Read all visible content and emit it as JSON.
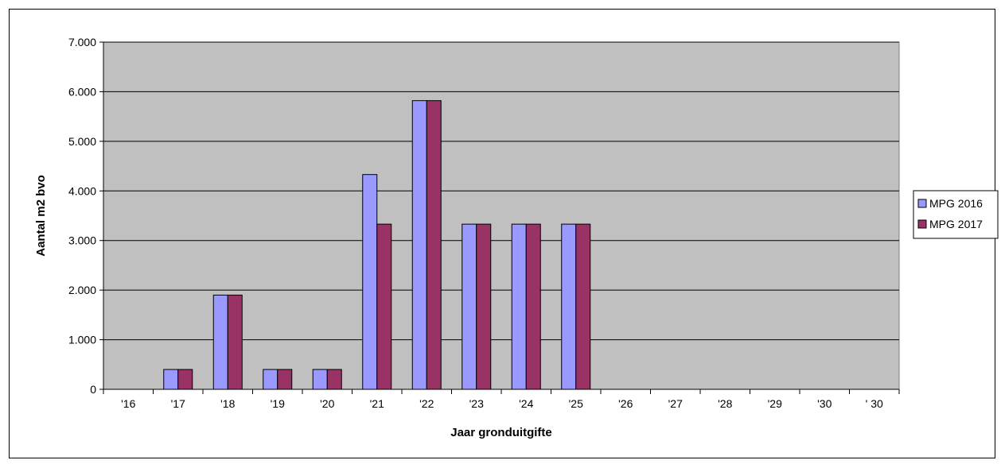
{
  "chart_data": {
    "type": "bar",
    "title": "",
    "xlabel": "Jaar gronduitgifte",
    "ylabel": "Aantal m2 bvo",
    "categories": [
      "'16",
      "'17",
      "'18",
      "'19",
      "'20",
      "'21",
      "'22",
      "'23",
      "'24",
      "'25",
      "'26",
      "'27",
      "'28",
      "'29",
      "'30",
      "' 30"
    ],
    "series": [
      {
        "name": "MPG 2016",
        "color": "#9999ff",
        "values": [
          0,
          400,
          1900,
          400,
          400,
          4330,
          5820,
          3330,
          3330,
          3330,
          0,
          0,
          0,
          0,
          0,
          0
        ]
      },
      {
        "name": "MPG 2017",
        "color": "#993366",
        "values": [
          0,
          400,
          1900,
          400,
          400,
          3330,
          5820,
          3330,
          3330,
          3330,
          0,
          0,
          0,
          0,
          0,
          0
        ]
      }
    ],
    "ylim": [
      0,
      7000
    ],
    "yticks": [
      0,
      1000,
      2000,
      3000,
      4000,
      5000,
      6000,
      7000
    ],
    "ytick_labels": [
      "0",
      "1.000",
      "2.000",
      "3.000",
      "4.000",
      "5.000",
      "6.000",
      "7.000"
    ],
    "grid": true,
    "plot_background": "#c0c0c0",
    "legend_position": "right"
  }
}
